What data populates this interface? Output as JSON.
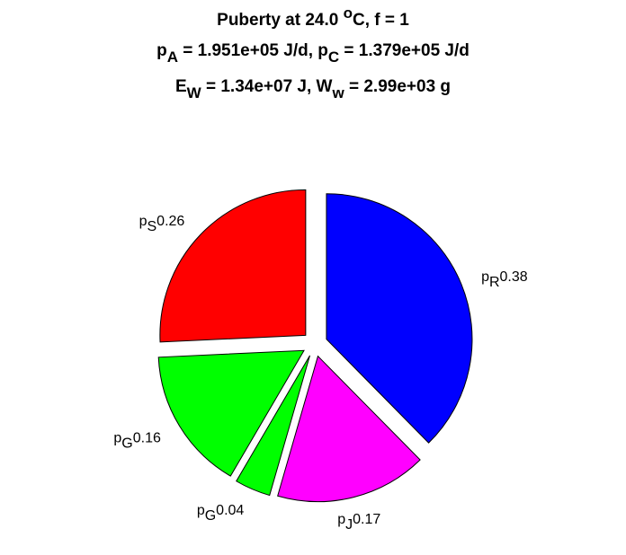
{
  "chart_data": {
    "type": "pie",
    "title": [
      [
        {
          "t": "Puberty at 24.0 "
        },
        {
          "t": "o",
          "sup": true
        },
        {
          "t": "C, f = 1"
        }
      ],
      [
        {
          "t": "p"
        },
        {
          "t": "A",
          "sub": true
        },
        {
          "t": " = 1.951e+05 J/d,  p"
        },
        {
          "t": "C",
          "sub": true
        },
        {
          "t": " = 1.379e+05 J/d"
        }
      ],
      [
        {
          "t": "E"
        },
        {
          "t": "W",
          "sub": true
        },
        {
          "t": " = 1.34e+07 J, W"
        },
        {
          "t": "w",
          "sub": true
        },
        {
          "t": " = 2.99e+03 g"
        }
      ]
    ],
    "categories": [
      {
        "base": "p",
        "sub": "R"
      },
      {
        "base": "p",
        "sub": "J"
      },
      {
        "base": "p",
        "sub": "G"
      },
      {
        "base": "p",
        "sub": "G"
      },
      {
        "base": "p",
        "sub": "S"
      }
    ],
    "values": [
      0.38,
      0.17,
      0.04,
      0.16,
      0.26
    ],
    "colors": [
      "#0000ff",
      "#ff00ff",
      "#00ff00",
      "#00ff00",
      "#ff0000"
    ],
    "exploded": true
  }
}
